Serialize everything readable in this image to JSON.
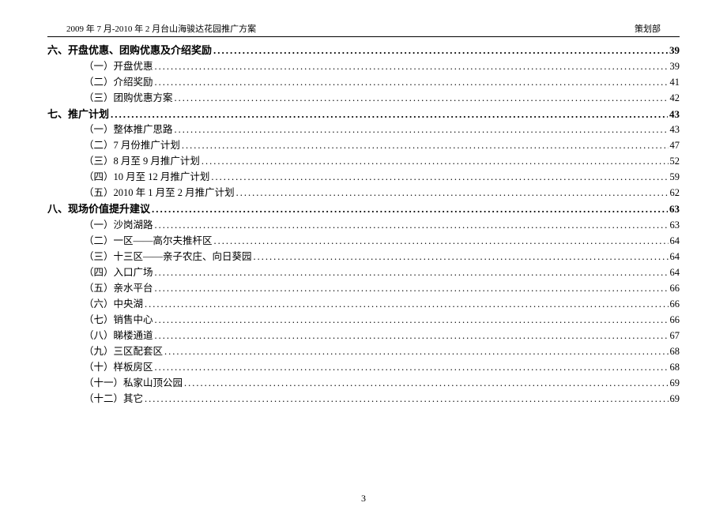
{
  "header": {
    "left": "2009 年 7 月-2010 年 2 月台山海骏达花园推广方案",
    "right": "策划部"
  },
  "toc": [
    {
      "level": "section",
      "label": "六、开盘优惠、团购优惠及介绍奖励",
      "page": "39"
    },
    {
      "level": "sub",
      "label": "（一）开盘优惠",
      "page": "39"
    },
    {
      "level": "sub",
      "label": "（二）介绍奖励",
      "page": "41"
    },
    {
      "level": "sub",
      "label": "（三）团购优惠方案",
      "page": "42"
    },
    {
      "level": "section",
      "label": "七、推广计划",
      "page": "43"
    },
    {
      "level": "sub",
      "label": "（一）整体推广思路",
      "page": "43"
    },
    {
      "level": "sub",
      "label": "（二）7 月份推广计划",
      "page": "47"
    },
    {
      "level": "sub",
      "label": "（三）8 月至 9 月推广计划",
      "page": "52"
    },
    {
      "level": "sub",
      "label": "（四）10 月至 12 月推广计划",
      "page": "59"
    },
    {
      "level": "sub",
      "label": "（五）2010 年 1 月至 2 月推广计划",
      "page": "62"
    },
    {
      "level": "section",
      "label": "八、现场价值提升建议",
      "page": "63"
    },
    {
      "level": "sub",
      "label": "（一）沙岗湖路",
      "page": "63"
    },
    {
      "level": "sub",
      "label": "（二）一区——高尔夫推杆区",
      "page": "64"
    },
    {
      "level": "sub",
      "label": "（三）十三区——亲子农庄、向日葵园",
      "page": "64"
    },
    {
      "level": "sub",
      "label": "（四）入口广场",
      "page": "64"
    },
    {
      "level": "sub",
      "label": "（五）亲水平台",
      "page": "66"
    },
    {
      "level": "sub",
      "label": "（六）中央湖",
      "page": "66"
    },
    {
      "level": "sub",
      "label": "（七）销售中心",
      "page": "66"
    },
    {
      "level": "sub",
      "label": "（八）睇楼通道",
      "page": "67"
    },
    {
      "level": "sub",
      "label": "（九）三区配套区",
      "page": "68"
    },
    {
      "level": "sub",
      "label": "（十）样板房区",
      "page": "68"
    },
    {
      "level": "sub",
      "label": "（十一）私家山顶公园",
      "page": "69"
    },
    {
      "level": "sub",
      "label": "（十二）其它",
      "page": "69"
    }
  ],
  "page_number": "3"
}
